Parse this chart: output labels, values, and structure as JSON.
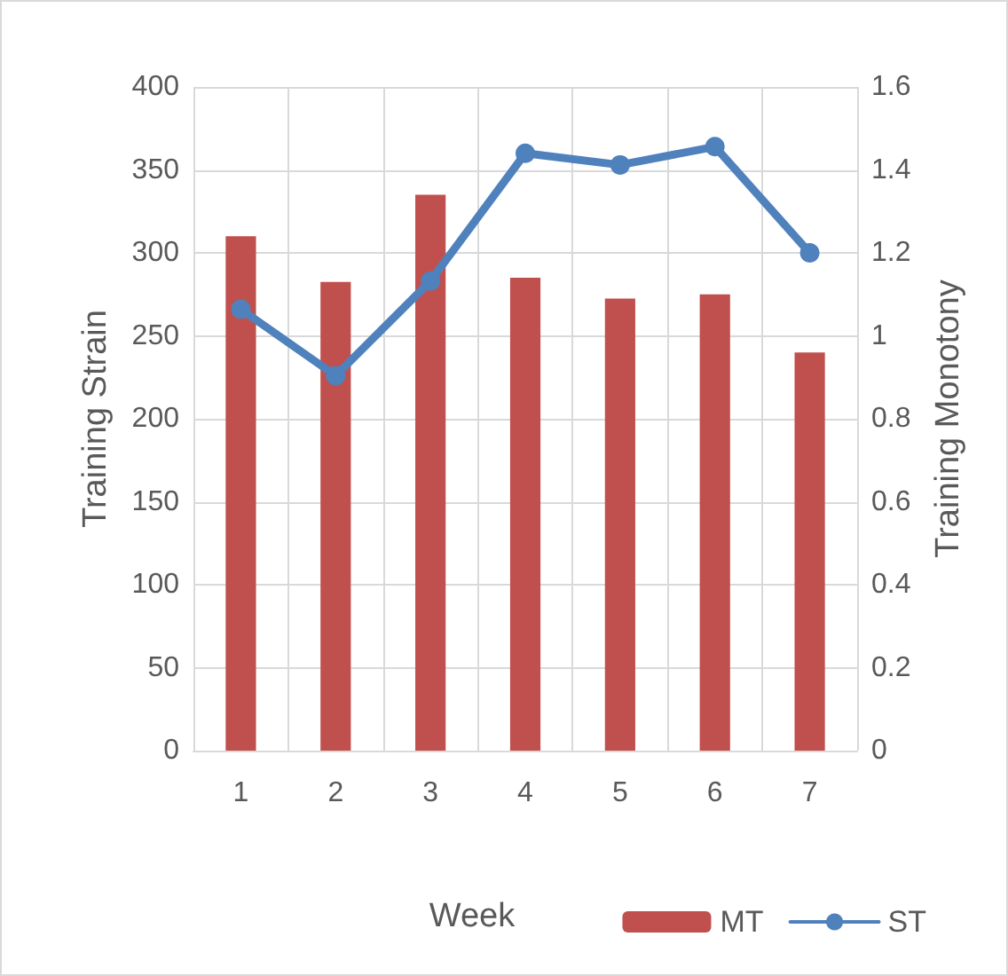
{
  "chart_data": {
    "type": "bar",
    "xlabel": "Week",
    "ylabel": "Training Strain",
    "y2label": "Training Monotony",
    "categories": [
      "1",
      "2",
      "3",
      "4",
      "5",
      "6",
      "7"
    ],
    "series": [
      {
        "name": "MT",
        "axis": "y2",
        "color": "#c0504d",
        "values": [
          1.24,
          1.13,
          1.34,
          1.14,
          1.09,
          1.1,
          0.96
        ]
      },
      {
        "name": "ST",
        "type": "line",
        "color": "#4f81bd",
        "marker": "circle",
        "values": [
          266,
          226,
          283,
          360,
          353,
          364,
          300
        ]
      }
    ],
    "ylim": [
      0,
      400
    ],
    "yticks": [
      0,
      50,
      100,
      150,
      200,
      250,
      300,
      350,
      400
    ],
    "y2lim": [
      0,
      1.6
    ],
    "y2ticks": [
      {
        "value": 0,
        "label": "0"
      },
      {
        "value": 0.2,
        "label": "0.2"
      },
      {
        "value": 0.4,
        "label": "0.4"
      },
      {
        "value": 0.6,
        "label": "0.6"
      },
      {
        "value": 0.8,
        "label": "0.8"
      },
      {
        "value": 1,
        "label": "1"
      },
      {
        "value": 1.2,
        "label": "1.2"
      },
      {
        "value": 1.4,
        "label": "1.4"
      },
      {
        "value": 1.6,
        "label": "1.6"
      }
    ],
    "grid": true,
    "legend": "bottom right"
  }
}
